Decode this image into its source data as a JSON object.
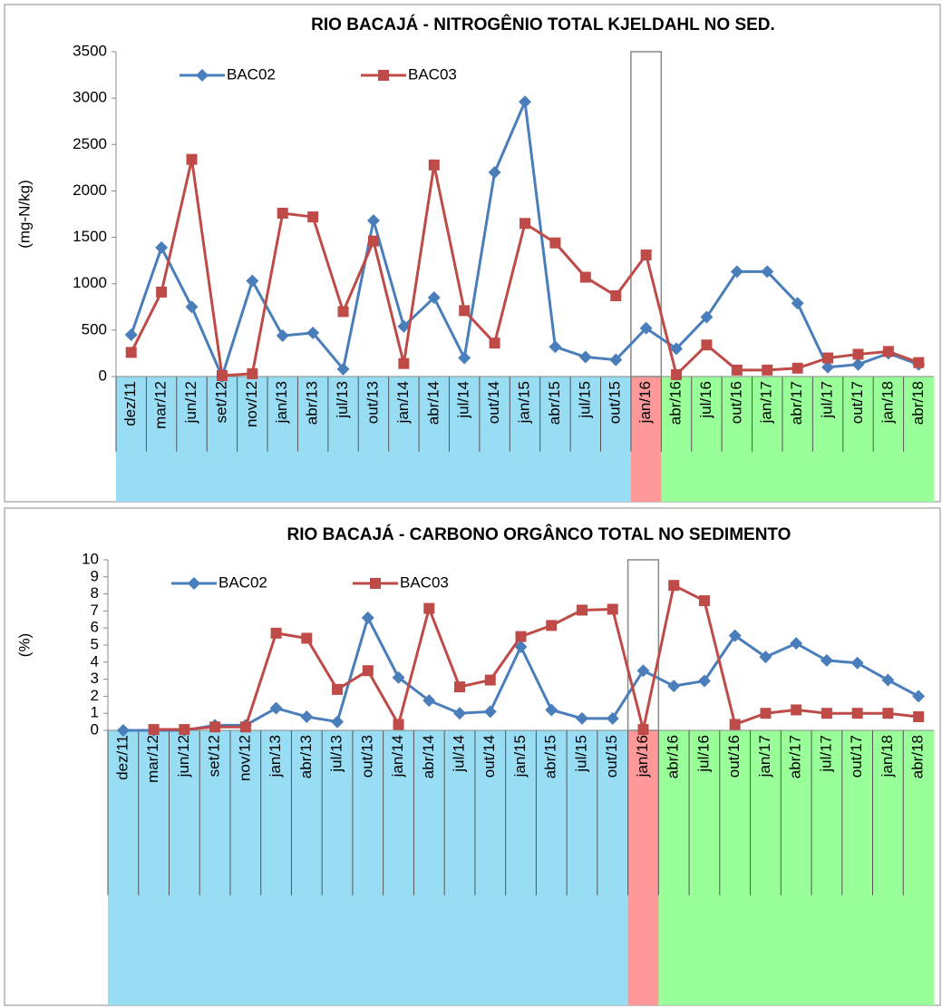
{
  "chart_data": [
    {
      "type": "line",
      "title": "RIO BACAJÁ - NITROGÊNIO TOTAL KJELDAHL NO SED.",
      "y_label": "(mg-N/kg)",
      "categories": [
        "dez/11",
        "mar/12",
        "jun/12",
        "set/12",
        "nov/12",
        "jan/13",
        "abr/13",
        "jul/13",
        "out/13",
        "jan/14",
        "abr/14",
        "jul/14",
        "out/14",
        "jan/15",
        "abr/15",
        "jul/15",
        "out/15",
        "jan/16",
        "abr/16",
        "jul/16",
        "out/16",
        "jan/17",
        "abr/17",
        "jul/17",
        "out/17",
        "jan/18",
        "abr/18"
      ],
      "category_colors": [
        "#99ddf5",
        "#99ddf5",
        "#99ddf5",
        "#99ddf5",
        "#99ddf5",
        "#99ddf5",
        "#99ddf5",
        "#99ddf5",
        "#99ddf5",
        "#99ddf5",
        "#99ddf5",
        "#99ddf5",
        "#99ddf5",
        "#99ddf5",
        "#99ddf5",
        "#99ddf5",
        "#99ddf5",
        "#ff9999",
        "#99ff99",
        "#99ff99",
        "#99ff99",
        "#99ff99",
        "#99ff99",
        "#99ff99",
        "#99ff99",
        "#99ff99",
        "#99ff99"
      ],
      "series": [
        {
          "name": "BAC02",
          "color": "#4a7ebb",
          "marker": "diamond",
          "values": [
            450,
            1390,
            750,
            0,
            1030,
            440,
            470,
            80,
            1680,
            540,
            850,
            200,
            2200,
            2960,
            320,
            210,
            180,
            520,
            300,
            640,
            1130,
            1130,
            790,
            100,
            130,
            250,
            130
          ]
        },
        {
          "name": "BAC03",
          "color": "#be4b48",
          "marker": "square",
          "values": [
            260,
            910,
            2340,
            10,
            30,
            1760,
            1720,
            700,
            1460,
            140,
            2280,
            710,
            360,
            1650,
            1440,
            1070,
            870,
            1310,
            20,
            340,
            70,
            70,
            90,
            200,
            240,
            270,
            150
          ]
        }
      ],
      "ylim": [
        0,
        3500
      ],
      "yticks": [
        0,
        500,
        1000,
        1500,
        2000,
        2500,
        3000,
        3500
      ]
    },
    {
      "type": "line",
      "title": "RIO BACAJÁ - CARBONO ORGÂNCO TOTAL NO SEDIMENTO",
      "y_label": "(%)",
      "categories": [
        "dez/11",
        "mar/12",
        "jun/12",
        "set/12",
        "nov/12",
        "jan/13",
        "abr/13",
        "jul/13",
        "out/13",
        "jan/14",
        "abr/14",
        "jul/14",
        "out/14",
        "jan/15",
        "abr/15",
        "jul/15",
        "out/15",
        "jan/16",
        "abr/16",
        "jul/16",
        "out/16",
        "jan/17",
        "abr/17",
        "jul/17",
        "out/17",
        "jan/18",
        "abr/18"
      ],
      "category_colors": [
        "#99ddf5",
        "#99ddf5",
        "#99ddf5",
        "#99ddf5",
        "#99ddf5",
        "#99ddf5",
        "#99ddf5",
        "#99ddf5",
        "#99ddf5",
        "#99ddf5",
        "#99ddf5",
        "#99ddf5",
        "#99ddf5",
        "#99ddf5",
        "#99ddf5",
        "#99ddf5",
        "#99ddf5",
        "#ff9999",
        "#99ff99",
        "#99ff99",
        "#99ff99",
        "#99ff99",
        "#99ff99",
        "#99ff99",
        "#99ff99",
        "#99ff99",
        "#99ff99"
      ],
      "series": [
        {
          "name": "BAC02",
          "color": "#4a7ebb",
          "marker": "diamond",
          "values": [
            0,
            0,
            0,
            0.3,
            0.3,
            1.3,
            0.8,
            0.5,
            6.6,
            3.1,
            1.75,
            1.0,
            1.1,
            4.9,
            1.2,
            0.7,
            0.7,
            3.5,
            2.6,
            2.9,
            5.55,
            4.3,
            5.1,
            4.1,
            3.95,
            2.95,
            2.0
          ]
        },
        {
          "name": "BAC03",
          "color": "#be4b48",
          "marker": "square",
          "values": [
            null,
            0.05,
            0.05,
            0.2,
            0.2,
            5.7,
            5.4,
            2.4,
            3.5,
            0.35,
            7.15,
            2.55,
            2.95,
            5.5,
            6.15,
            7.05,
            7.1,
            0.05,
            8.5,
            7.6,
            0.35,
            1.0,
            1.2,
            1.0,
            1.0,
            1.0,
            0.8
          ]
        }
      ],
      "ylim": [
        0,
        10
      ],
      "yticks": [
        0,
        1,
        2,
        3,
        4,
        5,
        6,
        7,
        8,
        9,
        10
      ]
    }
  ]
}
